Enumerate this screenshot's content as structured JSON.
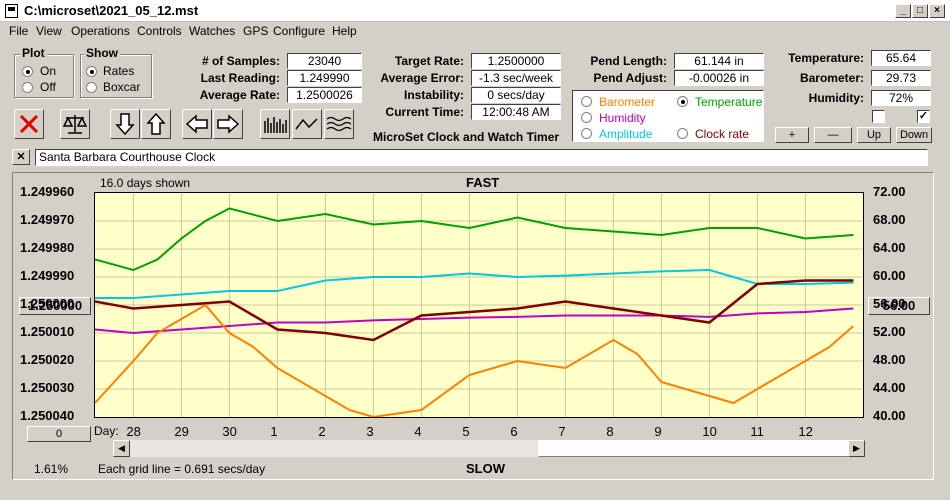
{
  "window": {
    "title": "C:\\microset\\2021_05_12.mst"
  },
  "menu": [
    "File",
    "View",
    "Operations",
    "Controls",
    "Watches",
    "GPS",
    "Configure",
    "Help"
  ],
  "plot_group": {
    "label": "Plot",
    "on": "On",
    "off": "Off",
    "selected": "On"
  },
  "show_group": {
    "label": "Show",
    "rates": "Rates",
    "boxcar": "Boxcar",
    "selected": "Rates"
  },
  "stats": {
    "samples_label": "# of Samples:",
    "samples": "23040",
    "last_label": "Last Reading:",
    "last": "1.249990",
    "avg_label": "Average Rate:",
    "avg": "1.2500026"
  },
  "rates": {
    "target_label": "Target Rate:",
    "target": "1.2500000",
    "error_label": "Average Error:",
    "error": "-1.3 sec/week",
    "instab_label": "Instability:",
    "instab": "0 secs/day",
    "time_label": "Current Time:",
    "time": "12:00:48 AM",
    "caption": "MicroSet Clock and Watch Timer"
  },
  "pendulum": {
    "length_label": "Pend Length:",
    "length": "61.144 in",
    "adjust_label": "Pend Adjust:",
    "adjust": "-0.00026 in"
  },
  "sensor_options": {
    "barometer": "Barometer",
    "temperature": "Temperature",
    "humidity": "Humidity",
    "amplitude": "Amplitude",
    "clock_rate": "Clock rate",
    "selected": "Temperature",
    "colors": {
      "barometer": "#ff8000",
      "temperature": "#00a000",
      "humidity": "#c000c0",
      "amplitude": "#00c8e0",
      "clock_rate": "#800000"
    }
  },
  "environment": {
    "temp_label": "Temperature:",
    "temp": "65.64",
    "baro_label": "Barometer:",
    "baro": "29.73",
    "humid_label": "Humidity:",
    "humid": "72%",
    "check1": false,
    "check2": true
  },
  "scale_buttons": {
    "plus": "+",
    "minus": "—",
    "up": "Up",
    "down": "Down"
  },
  "clock_name": "Santa Barbara Courthouse Clock",
  "chart_data": {
    "type": "line",
    "top_label": "FAST",
    "bottom_label": "SLOW",
    "days_shown": "16.0 days shown",
    "grid_note": "Each grid line = 0.691 secs/day",
    "percent": "1.61%",
    "left_button": "1.250000",
    "right_button": "56.00",
    "zero_button": "0",
    "x_label": "Day:",
    "days": [
      "28",
      "29",
      "30",
      "1",
      "2",
      "3",
      "4",
      "5",
      "6",
      "7",
      "8",
      "9",
      "10",
      "11",
      "12"
    ],
    "y_left_ticks": [
      "1.249960",
      "1.249970",
      "1.249980",
      "1.249990",
      "1.250000",
      "1.250010",
      "1.250020",
      "1.250030",
      "1.250040"
    ],
    "y_right_ticks": [
      "72.00",
      "68.00",
      "64.00",
      "60.00",
      "56.00",
      "52.00",
      "48.00",
      "44.00",
      "40.00"
    ],
    "x_range": [
      27.2,
      43.2
    ],
    "y_range_temperature": [
      40,
      72
    ],
    "series": [
      {
        "name": "Temperature",
        "color": "#00a000",
        "x": [
          27.2,
          28.0,
          28.5,
          29.0,
          29.5,
          30.0,
          31.0,
          32.0,
          33.0,
          34.0,
          35.0,
          36.0,
          37.0,
          38.0,
          39.0,
          40.0,
          41.0,
          42.0,
          43.0
        ],
        "y": [
          62.5,
          61.0,
          62.5,
          65.5,
          68.0,
          69.8,
          68.0,
          69.0,
          67.5,
          68.0,
          67.0,
          68.5,
          67.0,
          66.5,
          66.0,
          67.0,
          67.0,
          65.5,
          66.0
        ]
      },
      {
        "name": "Amplitude",
        "color": "#00c8e0",
        "x": [
          27.2,
          28.0,
          29.0,
          30.0,
          31.0,
          32.0,
          33.0,
          34.0,
          35.0,
          36.0,
          37.0,
          38.0,
          39.0,
          40.0,
          41.0,
          42.0,
          43.0
        ],
        "y": [
          57.0,
          57.0,
          57.5,
          58.0,
          58.0,
          59.5,
          60.0,
          60.0,
          60.5,
          60.0,
          60.2,
          60.5,
          60.8,
          61.0,
          59.0,
          59.0,
          59.2
        ]
      },
      {
        "name": "Humidity",
        "color": "#c000c0",
        "x": [
          27.2,
          28.0,
          29.0,
          30.0,
          31.0,
          32.0,
          33.0,
          34.0,
          35.0,
          36.0,
          37.0,
          38.0,
          39.0,
          40.0,
          41.0,
          42.0,
          43.0
        ],
        "y": [
          52.5,
          52.0,
          52.5,
          53.0,
          53.5,
          53.5,
          53.8,
          54.0,
          54.2,
          54.3,
          54.5,
          54.5,
          54.5,
          54.3,
          54.8,
          55.0,
          55.5
        ]
      },
      {
        "name": "Clock rate",
        "color": "#800000",
        "x": [
          27.2,
          28.0,
          29.0,
          30.0,
          31.0,
          32.0,
          33.0,
          34.0,
          35.0,
          36.0,
          37.0,
          38.0,
          39.0,
          40.0,
          41.0,
          42.0,
          43.0
        ],
        "y": [
          56.5,
          55.5,
          56.0,
          56.5,
          52.5,
          52.0,
          51.0,
          54.5,
          55.0,
          55.5,
          56.5,
          55.5,
          54.5,
          53.5,
          59.0,
          59.5,
          59.5
        ]
      },
      {
        "name": "Barometer",
        "color": "#ff8000",
        "x": [
          27.2,
          27.6,
          28.0,
          28.5,
          29.0,
          29.5,
          30.0,
          30.5,
          31.0,
          31.5,
          32.0,
          32.5,
          33.0,
          34.0,
          35.0,
          36.0,
          37.0,
          38.0,
          38.5,
          39.0,
          40.0,
          40.5,
          41.0,
          41.5,
          42.0,
          42.5,
          43.0
        ],
        "y": [
          42.0,
          45.0,
          48.0,
          52.0,
          54.0,
          56.0,
          52.0,
          50.0,
          47.0,
          45.0,
          43.0,
          41.0,
          40.0,
          41.0,
          46.0,
          48.0,
          47.0,
          51.0,
          49.0,
          45.0,
          43.0,
          42.0,
          44.0,
          46.0,
          48.0,
          50.0,
          53.0
        ]
      }
    ]
  }
}
